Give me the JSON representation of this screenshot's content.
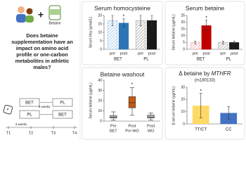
{
  "betaine_label": "Betaine",
  "question": "Does betaine supplementation have an impact on amino acid profile or one-carbon metabolites in athletic males?",
  "design": {
    "arms": [
      [
        "BET",
        "PL"
      ],
      [
        "PL",
        "BET"
      ]
    ],
    "interval_labels": [
      "3 weeks",
      "3 weeks"
    ],
    "timepoints": [
      "T1",
      "T2",
      "T3",
      "T4"
    ]
  },
  "chart_data": [
    {
      "type": "grouped_bar",
      "title": "Serum homocysteine",
      "y_label": "Serum Hcy (µmol/L)",
      "ylim": [
        0,
        20
      ],
      "yticks": [
        0,
        5,
        10,
        15,
        20
      ],
      "asterisk": "*",
      "groups": [
        {
          "name": "BET",
          "labels": [
            "pre",
            "post"
          ],
          "values": [
            17,
            15.5
          ],
          "errors": [
            3,
            2.5
          ],
          "colors": [
            "#9cc3e6",
            "#2e75b6"
          ],
          "hatched": [
            true,
            false
          ]
        },
        {
          "name": "PL",
          "labels": [
            "pre",
            "post"
          ],
          "values": [
            17,
            17
          ],
          "errors": [
            3,
            3
          ],
          "colors": [
            "#a6a6a6",
            "#1a1a1a"
          ],
          "hatched": [
            true,
            false
          ]
        }
      ]
    },
    {
      "type": "grouped_bar",
      "title": "Serum betaine",
      "y_label": "Serum betaine (µg/mL)",
      "ylim": [
        0,
        25
      ],
      "yticks": [
        0,
        5,
        10,
        15,
        20,
        25
      ],
      "asterisk": "*",
      "groups": [
        {
          "name": "BET",
          "labels": [
            "pre",
            "post"
          ],
          "values": [
            5,
            17.5
          ],
          "errors": [
            1,
            4
          ],
          "colors": [
            "#f4a6a6",
            "#c00000"
          ],
          "hatched": [
            true,
            false
          ]
        },
        {
          "name": "PL",
          "labels": [
            "pre",
            "post"
          ],
          "values": [
            5,
            5
          ],
          "errors": [
            1,
            1
          ],
          "colors": [
            "#a6a6a6",
            "#1a1a1a"
          ],
          "hatched": [
            true,
            false
          ]
        }
      ]
    },
    {
      "type": "box",
      "title": "Betaine washout",
      "y_label": "Serum betaine (µg/mL)",
      "ylim": [
        0,
        40
      ],
      "yticks": [
        0,
        10,
        20,
        30,
        40
      ],
      "asterisk": "*",
      "categories": [
        [
          "Pre",
          "BET"
        ],
        [
          "Post",
          "Pre WO"
        ],
        [
          "Post",
          "WO"
        ]
      ],
      "colors": [
        "#bfbfbf",
        "#c55a11",
        "#bfbfbf"
      ],
      "boxes": [
        [
          1,
          3,
          4,
          5.5,
          9
        ],
        [
          6,
          13,
          18,
          24,
          33
        ],
        [
          1,
          3,
          4,
          6,
          8
        ]
      ]
    },
    {
      "type": "bar",
      "title": "Δ betaine by",
      "title_gene": "MTHFR",
      "subtitle": "(rs180133)",
      "y_label": "Δ serum betaine (µg/mL)",
      "ylim": [
        0,
        30
      ],
      "yticks": [
        0,
        10,
        20,
        30
      ],
      "asterisk": "*",
      "categories": [
        "TT/CT",
        "CC"
      ],
      "values": [
        15,
        9
      ],
      "errors": [
        10,
        5
      ],
      "colors": [
        "#ffd966",
        "#4472c4"
      ]
    }
  ]
}
